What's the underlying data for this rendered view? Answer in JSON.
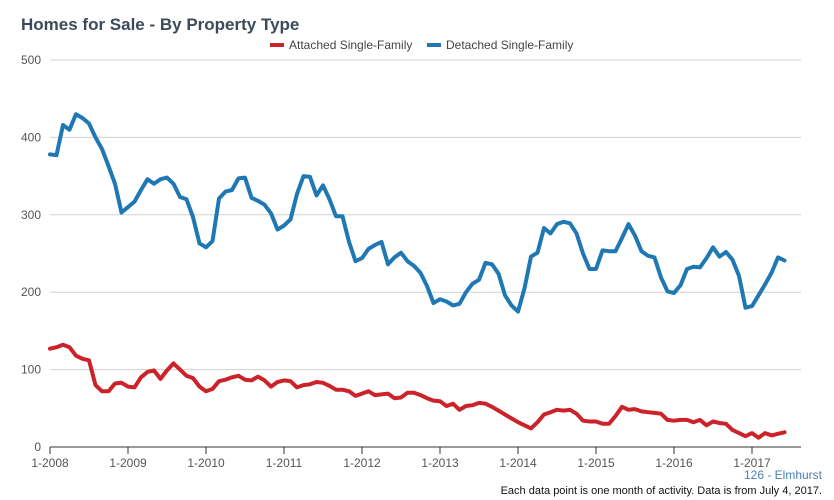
{
  "title": "Homes for Sale - By Property Type",
  "footer": {
    "city": "126 - Elmhurst",
    "note": "Each data point is one month of activity. Data is from July 4, 2017."
  },
  "chart_data": {
    "type": "line",
    "title": "Homes for Sale - By Property Type",
    "xlabel": "",
    "ylabel": "",
    "x_start": "2008-01",
    "x_end": "2017-06",
    "x_tick_labels": [
      "1-2008",
      "1-2009",
      "1-2010",
      "1-2011",
      "1-2012",
      "1-2013",
      "1-2014",
      "1-2015",
      "1-2016",
      "1-2017"
    ],
    "ylim": [
      0,
      500
    ],
    "y_ticks": [
      0,
      100,
      200,
      300,
      400,
      500
    ],
    "grid": true,
    "legend_position": "top-center",
    "series": [
      {
        "name": "Attached Single-Family",
        "color": "#cc2229",
        "values": [
          127,
          129,
          132,
          129,
          118,
          114,
          112,
          80,
          72,
          72,
          82,
          83,
          78,
          77,
          90,
          97,
          99,
          88,
          99,
          108,
          100,
          92,
          89,
          78,
          72,
          75,
          85,
          87,
          90,
          92,
          87,
          86,
          91,
          86,
          78,
          84,
          86,
          85,
          77,
          80,
          81,
          84,
          83,
          79,
          74,
          74,
          72,
          66,
          69,
          72,
          67,
          68,
          69,
          63,
          64,
          70,
          70,
          67,
          63,
          60,
          59,
          53,
          56,
          48,
          53,
          54,
          57,
          56,
          52,
          47,
          42,
          37,
          32,
          28,
          24,
          32,
          42,
          45,
          48,
          47,
          48,
          43,
          34,
          33,
          33,
          30,
          30,
          40,
          52,
          48,
          49,
          46,
          45,
          44,
          43,
          35,
          34,
          35,
          35,
          32,
          35,
          28,
          33,
          31,
          30,
          22,
          18,
          14,
          18,
          12,
          18,
          15,
          17,
          19
        ]
      },
      {
        "name": "Detached Single-Family",
        "color": "#1f78b4",
        "values": [
          378,
          377,
          416,
          410,
          430,
          425,
          418,
          400,
          385,
          363,
          340,
          303,
          310,
          317,
          332,
          346,
          340,
          346,
          348,
          340,
          323,
          320,
          297,
          263,
          258,
          266,
          321,
          330,
          332,
          347,
          348,
          322,
          318,
          313,
          302,
          281,
          286,
          294,
          327,
          350,
          349,
          325,
          338,
          320,
          298,
          298,
          265,
          240,
          244,
          256,
          261,
          265,
          236,
          245,
          251,
          240,
          234,
          225,
          208,
          186,
          191,
          188,
          183,
          185,
          200,
          211,
          216,
          238,
          236,
          224,
          196,
          183,
          175,
          205,
          246,
          251,
          283,
          276,
          288,
          291,
          289,
          276,
          250,
          230,
          230,
          254,
          253,
          253,
          270,
          288,
          273,
          253,
          247,
          245,
          219,
          201,
          199,
          209,
          230,
          233,
          232,
          244,
          258,
          246,
          252,
          242,
          221,
          180,
          182,
          196,
          210,
          225,
          245,
          241
        ]
      }
    ]
  }
}
